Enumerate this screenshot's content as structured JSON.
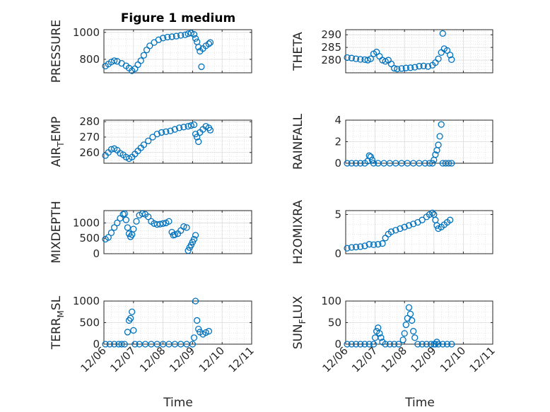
{
  "figure_title": "Figure 1 medium",
  "x_axis_label": "Time",
  "marker_color": "#0072BD",
  "chart_data": [
    {
      "type": "scatter",
      "ylabel": "PRESSURE",
      "ylabel_parts": [
        "PRESSURE"
      ],
      "xlim": [
        0,
        5
      ],
      "ylim": [
        700,
        1020
      ],
      "yticks": [
        800,
        1000
      ],
      "x_tick_labels": [
        "12/06",
        "12/07",
        "12/08",
        "12/09",
        "12/10",
        "12/11"
      ],
      "points": [
        [
          0.05,
          750
        ],
        [
          0.15,
          765
        ],
        [
          0.25,
          780
        ],
        [
          0.35,
          790
        ],
        [
          0.45,
          785
        ],
        [
          0.6,
          770
        ],
        [
          0.75,
          752
        ],
        [
          0.85,
          735
        ],
        [
          0.95,
          715
        ],
        [
          1.05,
          730
        ],
        [
          1.15,
          760
        ],
        [
          1.25,
          790
        ],
        [
          1.35,
          830
        ],
        [
          1.45,
          870
        ],
        [
          1.55,
          900
        ],
        [
          1.7,
          925
        ],
        [
          1.85,
          945
        ],
        [
          2.0,
          958
        ],
        [
          2.15,
          965
        ],
        [
          2.3,
          968
        ],
        [
          2.45,
          972
        ],
        [
          2.6,
          978
        ],
        [
          2.75,
          982
        ],
        [
          2.85,
          990
        ],
        [
          2.95,
          995
        ],
        [
          3.05,
          985
        ],
        [
          3.1,
          955
        ],
        [
          3.15,
          930
        ],
        [
          3.2,
          890
        ],
        [
          3.25,
          860
        ],
        [
          3.3,
          745
        ],
        [
          3.35,
          880
        ],
        [
          3.45,
          900
        ],
        [
          3.55,
          915
        ],
        [
          3.6,
          925
        ]
      ]
    },
    {
      "type": "scatter",
      "ylabel": "THETA",
      "ylabel_parts": [
        "THETA"
      ],
      "xlim": [
        0,
        5
      ],
      "ylim": [
        275,
        292
      ],
      "yticks": [
        280,
        285,
        290
      ],
      "x_tick_labels": [
        "12/06",
        "12/07",
        "12/08",
        "12/09",
        "12/10",
        "12/11"
      ],
      "points": [
        [
          0.05,
          281
        ],
        [
          0.2,
          280.8
        ],
        [
          0.35,
          280.5
        ],
        [
          0.5,
          280.3
        ],
        [
          0.65,
          280.2
        ],
        [
          0.75,
          280.0
        ],
        [
          0.85,
          280.5
        ],
        [
          0.95,
          282.5
        ],
        [
          1.05,
          283.2
        ],
        [
          1.15,
          281.5
        ],
        [
          1.25,
          280.0
        ],
        [
          1.35,
          279.5
        ],
        [
          1.45,
          280.0
        ],
        [
          1.55,
          278.5
        ],
        [
          1.65,
          276.8
        ],
        [
          1.75,
          276.5
        ],
        [
          1.9,
          276.7
        ],
        [
          2.05,
          276.9
        ],
        [
          2.2,
          277.0
        ],
        [
          2.35,
          277.2
        ],
        [
          2.5,
          277.6
        ],
        [
          2.65,
          277.7
        ],
        [
          2.8,
          277.5
        ],
        [
          2.95,
          278.0
        ],
        [
          3.05,
          279.0
        ],
        [
          3.15,
          280.5
        ],
        [
          3.25,
          283.0
        ],
        [
          3.3,
          290.5
        ],
        [
          3.35,
          284.5
        ],
        [
          3.45,
          283.8
        ],
        [
          3.55,
          282.0
        ],
        [
          3.6,
          280.2
        ]
      ]
    },
    {
      "type": "scatter",
      "ylabel": "AIR_TEMP",
      "ylabel_parts": [
        "AIR",
        "T",
        "EMP"
      ],
      "xlim": [
        0,
        5
      ],
      "ylim": [
        253,
        281
      ],
      "yticks": [
        260,
        270,
        280
      ],
      "x_tick_labels": [
        "12/06",
        "12/07",
        "12/08",
        "12/09",
        "12/10",
        "12/11"
      ],
      "points": [
        [
          0.05,
          258
        ],
        [
          0.15,
          260
        ],
        [
          0.25,
          262
        ],
        [
          0.35,
          262.5
        ],
        [
          0.45,
          261.5
        ],
        [
          0.55,
          259.5
        ],
        [
          0.65,
          258.5
        ],
        [
          0.75,
          257
        ],
        [
          0.85,
          256
        ],
        [
          0.95,
          257
        ],
        [
          1.05,
          259
        ],
        [
          1.15,
          261
        ],
        [
          1.25,
          263
        ],
        [
          1.35,
          265
        ],
        [
          1.5,
          267.5
        ],
        [
          1.65,
          270
        ],
        [
          1.8,
          272
        ],
        [
          1.95,
          273
        ],
        [
          2.1,
          273.5
        ],
        [
          2.25,
          274
        ],
        [
          2.4,
          275
        ],
        [
          2.55,
          276
        ],
        [
          2.7,
          276.5
        ],
        [
          2.85,
          277
        ],
        [
          2.95,
          277.5
        ],
        [
          3.05,
          278
        ],
        [
          3.1,
          272
        ],
        [
          3.15,
          270
        ],
        [
          3.2,
          267
        ],
        [
          3.25,
          273
        ],
        [
          3.35,
          275
        ],
        [
          3.45,
          277
        ],
        [
          3.55,
          276
        ],
        [
          3.6,
          274.5
        ]
      ]
    },
    {
      "type": "scatter",
      "ylabel": "RAINFALL",
      "ylabel_parts": [
        "RAINFALL"
      ],
      "xlim": [
        0,
        5
      ],
      "ylim": [
        0,
        4
      ],
      "yticks": [
        0,
        2,
        4
      ],
      "x_tick_labels": [
        "12/06",
        "12/07",
        "12/08",
        "12/09",
        "12/10",
        "12/11"
      ],
      "points": [
        [
          0.05,
          0
        ],
        [
          0.2,
          0
        ],
        [
          0.35,
          0
        ],
        [
          0.5,
          0
        ],
        [
          0.65,
          0
        ],
        [
          0.75,
          0.2
        ],
        [
          0.8,
          0.7
        ],
        [
          0.85,
          0.6
        ],
        [
          0.9,
          0.3
        ],
        [
          0.95,
          0
        ],
        [
          1.1,
          0
        ],
        [
          1.3,
          0
        ],
        [
          1.5,
          0
        ],
        [
          1.7,
          0
        ],
        [
          1.9,
          0
        ],
        [
          2.1,
          0
        ],
        [
          2.3,
          0
        ],
        [
          2.5,
          0
        ],
        [
          2.7,
          0
        ],
        [
          2.85,
          0
        ],
        [
          2.95,
          0
        ],
        [
          3.0,
          0.3
        ],
        [
          3.05,
          0.8
        ],
        [
          3.1,
          1.2
        ],
        [
          3.15,
          1.7
        ],
        [
          3.2,
          2.5
        ],
        [
          3.25,
          3.6
        ],
        [
          3.3,
          0
        ],
        [
          3.4,
          0
        ],
        [
          3.5,
          0
        ],
        [
          3.6,
          0
        ]
      ]
    },
    {
      "type": "scatter",
      "ylabel": "MIXDEPTH",
      "ylabel_parts": [
        "MIXDEPTH"
      ],
      "xlim": [
        0,
        5
      ],
      "ylim": [
        0,
        1400
      ],
      "yticks": [
        0,
        500,
        1000
      ],
      "x_tick_labels": [
        "12/06",
        "12/07",
        "12/08",
        "12/09",
        "12/10",
        "12/11"
      ],
      "points": [
        [
          0.05,
          470
        ],
        [
          0.15,
          530
        ],
        [
          0.25,
          680
        ],
        [
          0.35,
          850
        ],
        [
          0.45,
          1000
        ],
        [
          0.55,
          1150
        ],
        [
          0.65,
          1280
        ],
        [
          0.7,
          1300
        ],
        [
          0.75,
          1100
        ],
        [
          0.8,
          850
        ],
        [
          0.85,
          650
        ],
        [
          0.9,
          550
        ],
        [
          0.95,
          620
        ],
        [
          1.0,
          800
        ],
        [
          1.1,
          1050
        ],
        [
          1.2,
          1250
        ],
        [
          1.3,
          1300
        ],
        [
          1.4,
          1280
        ],
        [
          1.5,
          1200
        ],
        [
          1.6,
          1050
        ],
        [
          1.7,
          980
        ],
        [
          1.8,
          950
        ],
        [
          1.9,
          960
        ],
        [
          2.0,
          980
        ],
        [
          2.1,
          1000
        ],
        [
          2.2,
          1050
        ],
        [
          2.3,
          700
        ],
        [
          2.35,
          600
        ],
        [
          2.4,
          620
        ],
        [
          2.5,
          650
        ],
        [
          2.6,
          750
        ],
        [
          2.7,
          880
        ],
        [
          2.8,
          850
        ],
        [
          2.85,
          100
        ],
        [
          2.9,
          200
        ],
        [
          2.95,
          280
        ],
        [
          3.0,
          380
        ],
        [
          3.05,
          470
        ],
        [
          3.1,
          600
        ]
      ]
    },
    {
      "type": "scatter",
      "ylabel": "H2OMIXRA",
      "ylabel_parts": [
        "H2OMIXRA"
      ],
      "xlim": [
        0,
        5
      ],
      "ylim": [
        0,
        5.5
      ],
      "yticks": [
        0,
        5
      ],
      "x_tick_labels": [
        "12/06",
        "12/07",
        "12/08",
        "12/09",
        "12/10",
        "12/11"
      ],
      "points": [
        [
          0.05,
          0.7
        ],
        [
          0.2,
          0.8
        ],
        [
          0.35,
          0.85
        ],
        [
          0.5,
          0.9
        ],
        [
          0.65,
          1.0
        ],
        [
          0.8,
          1.2
        ],
        [
          0.95,
          1.15
        ],
        [
          1.1,
          1.2
        ],
        [
          1.25,
          1.3
        ],
        [
          1.35,
          2.0
        ],
        [
          1.45,
          2.5
        ],
        [
          1.55,
          2.8
        ],
        [
          1.7,
          3.0
        ],
        [
          1.85,
          3.2
        ],
        [
          2.0,
          3.4
        ],
        [
          2.15,
          3.6
        ],
        [
          2.3,
          3.8
        ],
        [
          2.45,
          4.0
        ],
        [
          2.6,
          4.3
        ],
        [
          2.75,
          4.7
        ],
        [
          2.85,
          5.0
        ],
        [
          2.95,
          5.2
        ],
        [
          3.0,
          5.0
        ],
        [
          3.05,
          4.3
        ],
        [
          3.1,
          3.6
        ],
        [
          3.15,
          3.2
        ],
        [
          3.25,
          3.4
        ],
        [
          3.35,
          3.7
        ],
        [
          3.45,
          4.0
        ],
        [
          3.55,
          4.3
        ]
      ]
    },
    {
      "type": "scatter",
      "ylabel": "TERR_MSL",
      "ylabel_parts": [
        "TERR",
        "M",
        "SL"
      ],
      "xlim": [
        0,
        5
      ],
      "ylim": [
        0,
        1000
      ],
      "yticks": [
        0,
        500,
        1000
      ],
      "x_tick_labels": [
        "12/06",
        "12/07",
        "12/08",
        "12/09",
        "12/10",
        "12/11"
      ],
      "points": [
        [
          0.05,
          0
        ],
        [
          0.2,
          0
        ],
        [
          0.35,
          0
        ],
        [
          0.5,
          0
        ],
        [
          0.6,
          0
        ],
        [
          0.7,
          0
        ],
        [
          0.8,
          280
        ],
        [
          0.85,
          550
        ],
        [
          0.9,
          600
        ],
        [
          0.95,
          750
        ],
        [
          1.0,
          320
        ],
        [
          1.05,
          0
        ],
        [
          1.2,
          0
        ],
        [
          1.4,
          0
        ],
        [
          1.6,
          0
        ],
        [
          1.8,
          0
        ],
        [
          2.0,
          0
        ],
        [
          2.2,
          0
        ],
        [
          2.4,
          0
        ],
        [
          2.6,
          0
        ],
        [
          2.8,
          0
        ],
        [
          3.0,
          0
        ],
        [
          3.05,
          150
        ],
        [
          3.1,
          1000
        ],
        [
          3.15,
          550
        ],
        [
          3.2,
          350
        ],
        [
          3.25,
          280
        ],
        [
          3.35,
          230
        ],
        [
          3.45,
          270
        ],
        [
          3.55,
          300
        ]
      ]
    },
    {
      "type": "scatter",
      "ylabel": "SUN_FLUX",
      "ylabel_parts": [
        "SUN",
        "F",
        "LUX"
      ],
      "xlim": [
        0,
        5
      ],
      "ylim": [
        0,
        100
      ],
      "yticks": [
        0,
        50,
        100
      ],
      "x_tick_labels": [
        "12/06",
        "12/07",
        "12/08",
        "12/09",
        "12/10",
        "12/11"
      ],
      "points": [
        [
          0.05,
          0
        ],
        [
          0.2,
          0
        ],
        [
          0.35,
          0
        ],
        [
          0.5,
          0
        ],
        [
          0.65,
          0
        ],
        [
          0.8,
          0
        ],
        [
          0.95,
          0
        ],
        [
          1.0,
          15
        ],
        [
          1.05,
          30
        ],
        [
          1.1,
          38
        ],
        [
          1.15,
          25
        ],
        [
          1.2,
          15
        ],
        [
          1.25,
          5
        ],
        [
          1.35,
          0
        ],
        [
          1.5,
          0
        ],
        [
          1.65,
          0
        ],
        [
          1.8,
          0
        ],
        [
          1.95,
          10
        ],
        [
          2.0,
          25
        ],
        [
          2.05,
          45
        ],
        [
          2.1,
          60
        ],
        [
          2.15,
          85
        ],
        [
          2.2,
          70
        ],
        [
          2.25,
          55
        ],
        [
          2.3,
          30
        ],
        [
          2.35,
          15
        ],
        [
          2.45,
          0
        ],
        [
          2.6,
          0
        ],
        [
          2.75,
          0
        ],
        [
          2.9,
          0
        ],
        [
          3.0,
          0
        ],
        [
          3.05,
          0
        ],
        [
          3.1,
          5
        ],
        [
          3.15,
          0
        ],
        [
          3.3,
          0
        ],
        [
          3.45,
          0
        ],
        [
          3.6,
          0
        ]
      ]
    }
  ]
}
